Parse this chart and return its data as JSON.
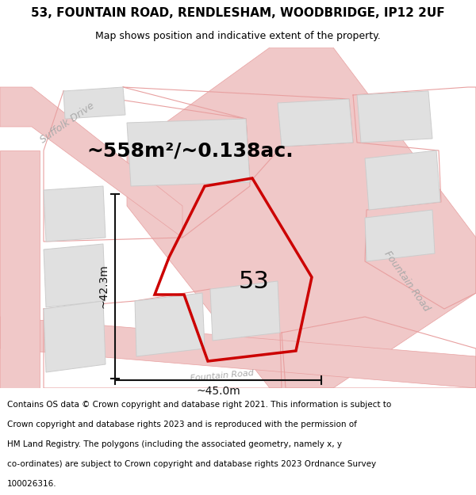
{
  "title": "53, FOUNTAIN ROAD, RENDLESHAM, WOODBRIDGE, IP12 2UF",
  "subtitle": "Map shows position and indicative extent of the property.",
  "area_label": "~558m²/~0.138ac.",
  "number_label": "53",
  "width_label": "~45.0m",
  "height_label": "~42.3m",
  "copyright_lines": [
    "Contains OS data © Crown copyright and database right 2021. This information is subject to",
    "Crown copyright and database rights 2023 and is reproduced with the permission of",
    "HM Land Registry. The polygons (including the associated geometry, namely x, y",
    "co-ordinates) are subject to Crown copyright and database rights 2023 Ordnance Survey",
    "100026316."
  ],
  "bg_color": "#f5f0f0",
  "map_bg": "#ffffff",
  "road_color": "#f0c8c8",
  "road_outline": "#e8a0a0",
  "block_color": "#e0e0e0",
  "block_outline": "#cccccc",
  "property_color": "#cc0000",
  "dim_color": "#111111",
  "road_label_color": "#aaaaaa",
  "suffolk_drive_label": "Suffolk Drive",
  "fountain_road_label": "Fountain Road",
  "title_fontsize": 11,
  "subtitle_fontsize": 9,
  "area_fontsize": 18,
  "number_fontsize": 22,
  "dim_fontsize": 10,
  "copyright_fontsize": 7.5,
  "road_label_fontsize": 9
}
